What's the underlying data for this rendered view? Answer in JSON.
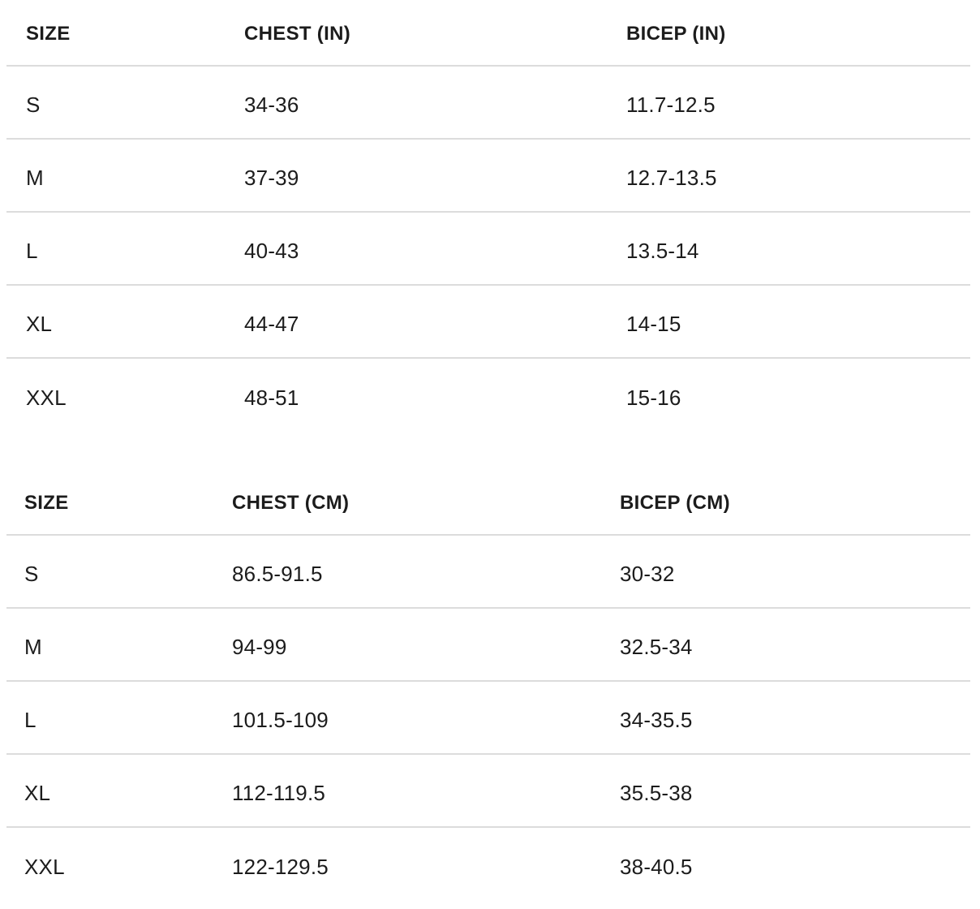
{
  "page": {
    "background_color": "#ffffff",
    "text_color": "#1c1c1c",
    "divider_color": "#dcdcdc"
  },
  "tables": [
    {
      "name": "size-chart-inches",
      "columns": [
        "SIZE",
        "CHEST (IN)",
        "BICEP (IN)"
      ],
      "rows": [
        [
          "S",
          "34-36",
          "11.7-12.5"
        ],
        [
          "M",
          "37-39",
          "12.7-13.5"
        ],
        [
          "L",
          "40-43",
          "13.5-14"
        ],
        [
          "XL",
          "44-47",
          "14-15"
        ],
        [
          "XXL",
          "48-51",
          "15-16"
        ]
      ]
    },
    {
      "name": "size-chart-centimeters",
      "columns": [
        "SIZE",
        "CHEST (CM)",
        "BICEP (CM)"
      ],
      "rows": [
        [
          "S",
          "86.5-91.5",
          "30-32"
        ],
        [
          "M",
          "94-99",
          "32.5-34"
        ],
        [
          "L",
          "101.5-109",
          "34-35.5"
        ],
        [
          "XL",
          "112-119.5",
          "35.5-38"
        ],
        [
          "XXL",
          "122-129.5",
          "38-40.5"
        ]
      ]
    }
  ]
}
